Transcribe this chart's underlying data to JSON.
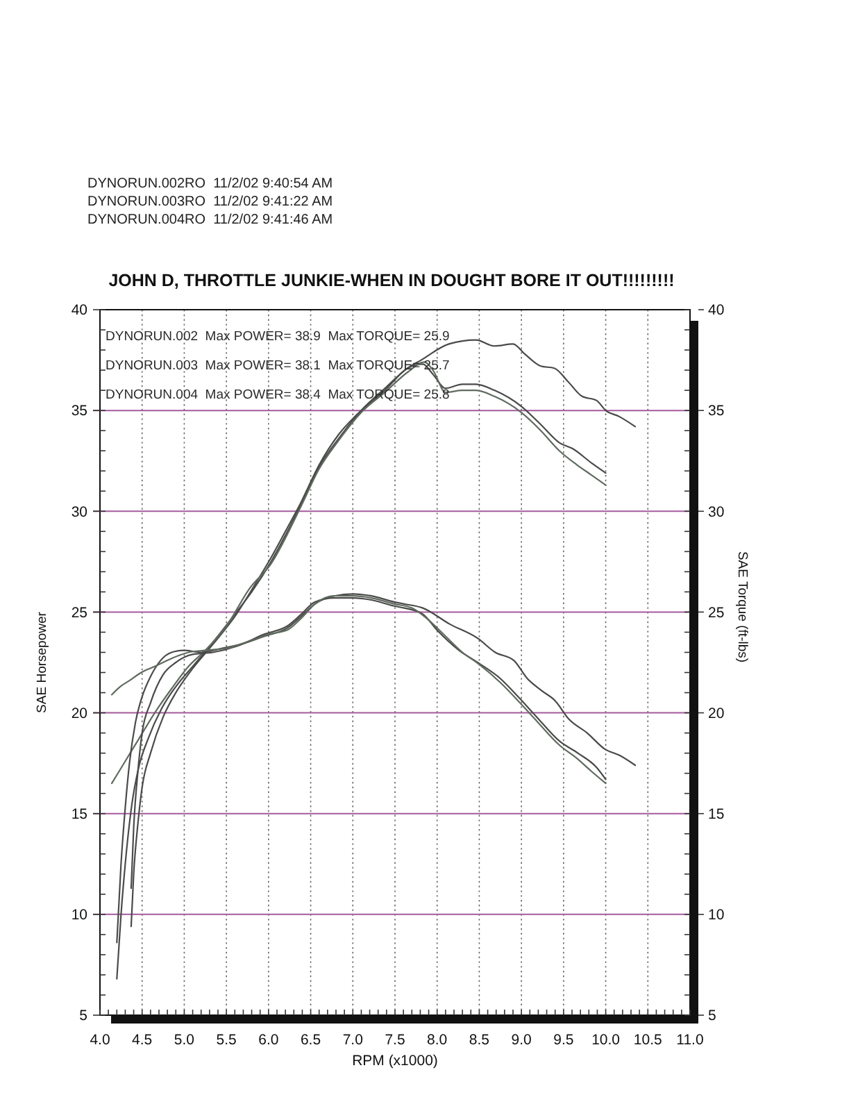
{
  "chart_data": {
    "type": "line",
    "title": "JOHN D, THROTTLE JUNKIE-WHEN IN DOUGHT BORE IT OUT!!!!!!!!!",
    "subtitle": "DYNORUN.002RO  11/2/02 9:40:54 AM\nDYNORUN.003RO  11/2/02 9:41:22 AM\nDYNORUN.004RO  11/2/02 9:41:46 AM",
    "xlabel": "RPM (x1000)",
    "ylabel": "SAE Horsepower",
    "y2label": "SAE Torque (ft-lbs)",
    "annotations": [
      "DYNORUN.002  Max POWER= 38.9  Max TORQUE= 25.9",
      "DYNORUN.003  Max POWER= 38.1  Max TORQUE= 25.7",
      "DYNORUN.004  Max POWER= 38.4  Max TORQUE= 25.8"
    ],
    "xlim": [
      4,
      11
    ],
    "ylim": [
      5,
      40
    ],
    "y2lim": [
      5,
      40
    ],
    "grid": true,
    "xticks": [
      {
        "value": 4,
        "label": "4.0"
      },
      {
        "value": 4.1,
        "label": null
      },
      {
        "value": 4.2,
        "label": null
      },
      {
        "value": 4.3,
        "label": null
      },
      {
        "value": 4.4,
        "label": null
      },
      {
        "value": 4.5,
        "label": "4.5"
      },
      {
        "value": 4.6,
        "label": null
      },
      {
        "value": 4.7,
        "label": null
      },
      {
        "value": 4.8,
        "label": null
      },
      {
        "value": 4.9,
        "label": null
      },
      {
        "value": 5,
        "label": "5.0"
      },
      {
        "value": 5.1,
        "label": null
      },
      {
        "value": 5.2,
        "label": null
      },
      {
        "value": 5.3,
        "label": null
      },
      {
        "value": 5.4,
        "label": null
      },
      {
        "value": 5.5,
        "label": "5.5"
      },
      {
        "value": 5.6,
        "label": null
      },
      {
        "value": 5.7,
        "label": null
      },
      {
        "value": 5.8,
        "label": null
      },
      {
        "value": 5.9,
        "label": null
      },
      {
        "value": 6,
        "label": "6.0"
      },
      {
        "value": 6.1,
        "label": null
      },
      {
        "value": 6.2,
        "label": null
      },
      {
        "value": 6.3,
        "label": null
      },
      {
        "value": 6.4,
        "label": null
      },
      {
        "value": 6.5,
        "label": "6.5"
      },
      {
        "value": 6.6,
        "label": null
      },
      {
        "value": 6.7,
        "label": null
      },
      {
        "value": 6.8,
        "label": null
      },
      {
        "value": 6.9,
        "label": null
      },
      {
        "value": 7,
        "label": "7.0"
      },
      {
        "value": 7.1,
        "label": null
      },
      {
        "value": 7.2,
        "label": null
      },
      {
        "value": 7.3,
        "label": null
      },
      {
        "value": 7.4,
        "label": null
      },
      {
        "value": 7.5,
        "label": "7.5"
      },
      {
        "value": 7.6,
        "label": null
      },
      {
        "value": 7.7,
        "label": null
      },
      {
        "value": 7.8,
        "label": null
      },
      {
        "value": 7.9,
        "label": null
      },
      {
        "value": 8,
        "label": "8.0"
      },
      {
        "value": 8.1,
        "label": null
      },
      {
        "value": 8.2,
        "label": null
      },
      {
        "value": 8.3,
        "label": null
      },
      {
        "value": 8.4,
        "label": null
      },
      {
        "value": 8.5,
        "label": "8.5"
      },
      {
        "value": 8.6,
        "label": null
      },
      {
        "value": 8.7,
        "label": null
      },
      {
        "value": 8.8,
        "label": null
      },
      {
        "value": 8.9,
        "label": null
      },
      {
        "value": 9,
        "label": "9.0"
      },
      {
        "value": 9.1,
        "label": null
      },
      {
        "value": 9.2,
        "label": null
      },
      {
        "value": 9.3,
        "label": null
      },
      {
        "value": 9.4,
        "label": null
      },
      {
        "value": 9.5,
        "label": "9.5"
      },
      {
        "value": 9.6,
        "label": null
      },
      {
        "value": 9.7,
        "label": null
      },
      {
        "value": 9.8,
        "label": null
      },
      {
        "value": 9.9,
        "label": null
      },
      {
        "value": 10,
        "label": "10.0"
      },
      {
        "value": 10.1,
        "label": null
      },
      {
        "value": 10.2,
        "label": null
      },
      {
        "value": 10.3,
        "label": null
      },
      {
        "value": 10.4,
        "label": null
      },
      {
        "value": 10.5,
        "label": "10.5"
      },
      {
        "value": 10.6,
        "label": null
      },
      {
        "value": 10.7,
        "label": null
      },
      {
        "value": 10.8,
        "label": null
      },
      {
        "value": 10.9,
        "label": null
      },
      {
        "value": 11,
        "label": "11.0"
      }
    ],
    "yticks": [
      5,
      {
        "value": 6,
        "label": null
      },
      {
        "value": 7,
        "label": null
      },
      {
        "value": 8,
        "label": null
      },
      {
        "value": 9,
        "label": null
      },
      10,
      {
        "value": 11,
        "label": null
      },
      {
        "value": 12,
        "label": null
      },
      {
        "value": 13,
        "label": null
      },
      {
        "value": 14,
        "label": null
      },
      15,
      {
        "value": 16,
        "label": null
      },
      {
        "value": 17,
        "label": null
      },
      {
        "value": 18,
        "label": null
      },
      {
        "value": 19,
        "label": null
      },
      20,
      {
        "value": 21,
        "label": null
      },
      {
        "value": 22,
        "label": null
      },
      {
        "value": 23,
        "label": null
      },
      {
        "value": 24,
        "label": null
      },
      25,
      {
        "value": 26,
        "label": null
      },
      {
        "value": 27,
        "label": null
      },
      {
        "value": 28,
        "label": null
      },
      {
        "value": 29,
        "label": null
      },
      30,
      {
        "value": 31,
        "label": null
      },
      {
        "value": 32,
        "label": null
      },
      {
        "value": 33,
        "label": null
      },
      {
        "value": 34,
        "label": null
      },
      35,
      {
        "value": 36,
        "label": null
      },
      {
        "value": 37,
        "label": null
      },
      {
        "value": 38,
        "label": null
      },
      {
        "value": 39,
        "label": null
      },
      40
    ],
    "y2ticks": [
      5,
      {
        "value": 6,
        "label": null
      },
      {
        "value": 7,
        "label": null
      },
      {
        "value": 8,
        "label": null
      },
      {
        "value": 9,
        "label": null
      },
      10,
      {
        "value": 11,
        "label": null
      },
      {
        "value": 12,
        "label": null
      },
      {
        "value": 13,
        "label": null
      },
      {
        "value": 14,
        "label": null
      },
      15,
      {
        "value": 16,
        "label": null
      },
      {
        "value": 17,
        "label": null
      },
      {
        "value": 18,
        "label": null
      },
      {
        "value": 19,
        "label": null
      },
      20,
      {
        "value": 21,
        "label": null
      },
      {
        "value": 22,
        "label": null
      },
      {
        "value": 23,
        "label": null
      },
      {
        "value": 24,
        "label": null
      },
      25,
      {
        "value": 26,
        "label": null
      },
      {
        "value": 27,
        "label": null
      },
      {
        "value": 28,
        "label": null
      },
      {
        "value": 29,
        "label": null
      },
      30,
      {
        "value": 31,
        "label": null
      },
      {
        "value": 32,
        "label": null
      },
      {
        "value": 33,
        "label": null
      },
      {
        "value": 34,
        "label": null
      },
      35,
      {
        "value": 36,
        "label": null
      },
      {
        "value": 37,
        "label": null
      },
      {
        "value": 38,
        "label": null
      },
      {
        "value": 39,
        "label": null
      },
      40
    ],
    "series": [
      {
        "color": "#4a4a4a",
        "x": [
          4.2,
          4.25,
          4.3,
          4.38,
          4.46,
          4.57,
          4.73,
          4.9,
          5.12,
          5.34,
          5.62,
          5.8,
          6.03,
          6.2,
          6.38,
          6.6,
          6.83,
          7.1,
          7.38,
          7.65,
          7.81,
          8.14,
          8.46,
          8.68,
          8.9,
          9.04,
          9.23,
          9.39,
          9.56,
          9.72,
          9.89,
          10,
          10.16,
          10.35
        ],
        "values": [
          6.8,
          10,
          12.5,
          15.5,
          17.3,
          18.7,
          20.2,
          21.3,
          22.4,
          23.5,
          25,
          26,
          27.5,
          28.8,
          30.3,
          32.2,
          33.6,
          35,
          36.1,
          37.1,
          37.5,
          38.3,
          38.5,
          38.2,
          38.3,
          37.8,
          37.2,
          37.1,
          36.4,
          35.7,
          35.5,
          35,
          34.7,
          34.2
        ]
      },
      {
        "color": "#4a4a4a",
        "x": [
          4.37,
          4.4,
          4.45,
          4.5,
          4.6,
          4.75,
          4.9,
          5.1,
          5.34,
          5.62,
          5.8,
          6.03,
          6.2,
          6.38,
          6.6,
          6.83,
          7.1,
          7.38,
          7.65,
          7.83,
          7.95,
          8.1,
          8.3,
          8.46,
          8.68,
          9,
          9.23,
          9.45,
          9.61,
          9.83,
          10
        ],
        "values": [
          9.4,
          12,
          14.5,
          16.3,
          18,
          19.8,
          21,
          22.2,
          23.4,
          24.9,
          26.1,
          27.7,
          29,
          30.4,
          32.3,
          33.8,
          35,
          36,
          37.1,
          37.3,
          36.8,
          36.1,
          36.3,
          36.3,
          36,
          35.2,
          34.3,
          33.4,
          33.1,
          32.4,
          31.9
        ]
      },
      {
        "color": "#5f6b5f",
        "x": [
          4.14,
          4.3,
          4.46,
          4.65,
          4.85,
          5.05,
          5.25,
          5.5,
          5.78,
          6.03,
          6.38,
          6.6,
          6.83,
          7.1,
          7.38,
          7.65,
          7.85,
          7.95,
          8.1,
          8.3,
          8.46,
          8.68,
          9,
          9.23,
          9.45,
          9.66,
          9.83,
          10
        ],
        "values": [
          16.5,
          17.6,
          18.7,
          20,
          21.2,
          22.3,
          23.1,
          24.3,
          26.2,
          27.4,
          30.2,
          32.1,
          33.5,
          34.9,
          35.9,
          36.9,
          37.4,
          37,
          35.9,
          36,
          36,
          35.7,
          34.9,
          34,
          33,
          32.3,
          31.8,
          31.3
        ]
      },
      {
        "color": "#4a4a4a",
        "x": [
          4.2,
          4.25,
          4.3,
          4.35,
          4.42,
          4.5,
          4.6,
          4.72,
          4.85,
          5,
          5.2,
          5.45,
          5.67,
          5.95,
          6.22,
          6.39,
          6.55,
          6.78,
          7,
          7.22,
          7.49,
          7.61,
          7.83,
          8.15,
          8.48,
          8.69,
          8.91,
          9.07,
          9.24,
          9.4,
          9.56,
          9.78,
          9.99,
          10.16,
          10.35
        ],
        "values": [
          8.6,
          12.5,
          15.3,
          17.5,
          19.5,
          20.8,
          21.8,
          22.6,
          23,
          23.1,
          23,
          23.2,
          23.4,
          23.8,
          24.2,
          24.8,
          25.4,
          25.8,
          25.9,
          25.8,
          25.5,
          25.4,
          25.2,
          24.4,
          23.7,
          23,
          22.6,
          21.7,
          21.1,
          20.6,
          19.7,
          19,
          18.2,
          17.9,
          17.4
        ]
      },
      {
        "color": "#4a4a4a",
        "x": [
          4.37,
          4.4,
          4.45,
          4.5,
          4.6,
          4.75,
          4.9,
          5.1,
          5.34,
          5.62,
          5.95,
          6.22,
          6.39,
          6.55,
          6.78,
          7,
          7.22,
          7.49,
          7.61,
          7.83,
          8,
          8.26,
          8.48,
          8.75,
          8.96,
          9.18,
          9.45,
          9.67,
          9.89,
          10
        ],
        "values": [
          11.3,
          14.3,
          17.1,
          19,
          20.5,
          21.9,
          22.5,
          22.9,
          23,
          23.3,
          23.9,
          24.3,
          24.9,
          25.5,
          25.7,
          25.7,
          25.6,
          25.3,
          25.2,
          24.9,
          24.1,
          23.1,
          22.5,
          21.7,
          20.8,
          19.8,
          18.6,
          18,
          17.3,
          16.7
        ]
      },
      {
        "color": "#5f6b5f",
        "x": [
          4.14,
          4.24,
          4.35,
          4.49,
          4.65,
          4.85,
          5.05,
          5.25,
          5.5,
          5.8,
          6,
          6.22,
          6.39,
          6.55,
          6.78,
          7,
          7.22,
          7.49,
          7.7,
          7.9,
          8.1,
          8.3,
          8.5,
          8.75,
          8.96,
          9.18,
          9.45,
          9.67,
          9.83,
          10
        ],
        "values": [
          20.9,
          21.3,
          21.6,
          22,
          22.3,
          22.7,
          23,
          23.1,
          23.2,
          23.6,
          23.9,
          24.1,
          24.7,
          25.4,
          25.8,
          25.8,
          25.7,
          25.4,
          25.2,
          24.6,
          23.8,
          23,
          22.4,
          21.5,
          20.6,
          19.6,
          18.4,
          17.7,
          17.1,
          16.5
        ]
      }
    ]
  }
}
